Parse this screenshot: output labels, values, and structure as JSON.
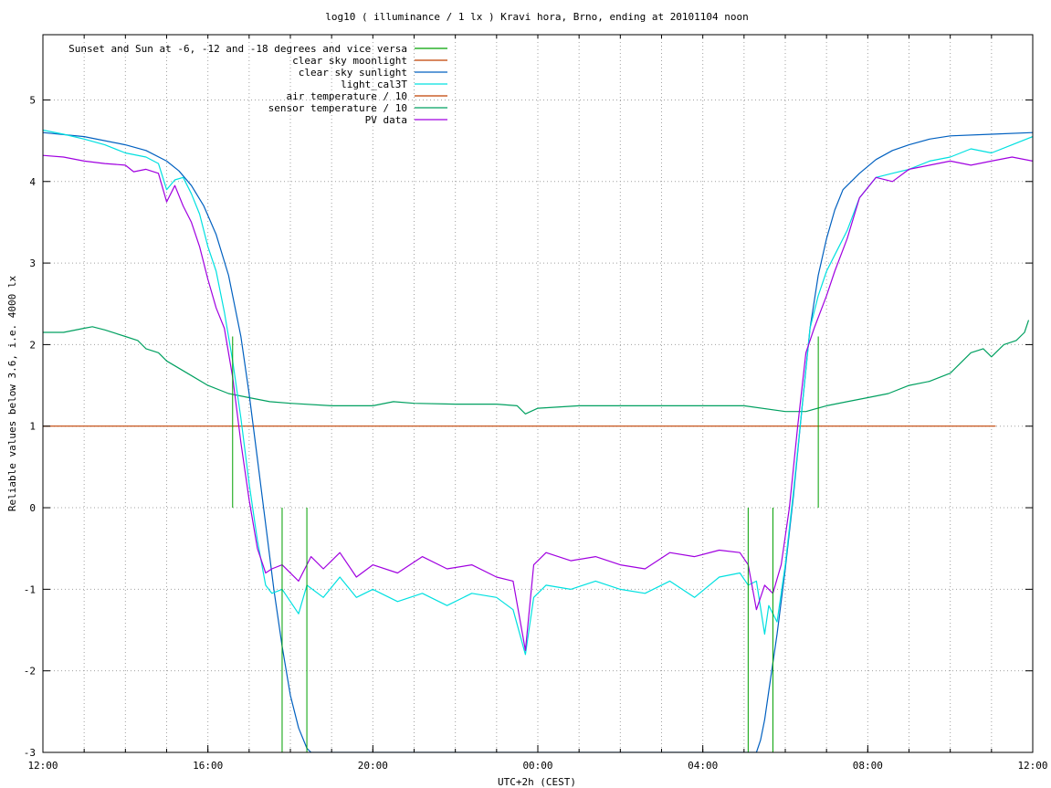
{
  "chart_data": {
    "type": "line",
    "title": "log10 ( illuminance / 1 lx ) Kravi hora, Brno, ending at 20101104 noon",
    "xlabel": "UTC+2h (CEST)",
    "ylabel": "Reliable values below 3.6, i.e. 4000 lx",
    "xlim_hours": [
      0,
      24
    ],
    "ylim": [
      -3,
      5.8
    ],
    "x_ticks": [
      {
        "h": 0,
        "label": "12:00"
      },
      {
        "h": 4,
        "label": "16:00"
      },
      {
        "h": 8,
        "label": "20:00"
      },
      {
        "h": 12,
        "label": "00:00"
      },
      {
        "h": 16,
        "label": "04:00"
      },
      {
        "h": 20,
        "label": "08:00"
      },
      {
        "h": 24,
        "label": "12:00"
      }
    ],
    "minor_grid_step_hours": 1,
    "y_ticks": [
      -3,
      -2,
      -1,
      0,
      1,
      2,
      3,
      4,
      5
    ],
    "grid": true,
    "legend_position": "top-left",
    "series": [
      {
        "name": "Sunset and Sun at -6, -12 and -18 degrees and vice versa",
        "color": "#00a000",
        "kind": "impulses",
        "markers": [
          {
            "x": 4.6,
            "y": 2.1
          },
          {
            "x": 5.8,
            "y": -3
          },
          {
            "x": 6.4,
            "y": -3
          },
          {
            "x": 17.1,
            "y": -3
          },
          {
            "x": 17.7,
            "y": -3
          },
          {
            "x": 18.8,
            "y": 2.1
          }
        ]
      },
      {
        "name": "clear sky moonlight",
        "color": "#c04000",
        "x": [
          0,
          23.1
        ],
        "y": [
          1,
          1
        ]
      },
      {
        "name": "clear sky sunlight",
        "color": "#0060c0",
        "x": [
          0,
          1,
          2,
          2.5,
          3,
          3.3,
          3.6,
          3.9,
          4.2,
          4.5,
          4.8,
          5.0,
          5.2,
          5.4,
          5.6,
          5.8,
          6.0,
          6.2,
          6.4,
          6.5,
          6.6,
          6.7,
          6.8,
          17.2,
          17.3,
          17.4,
          17.5,
          17.6,
          17.8,
          18.0,
          18.2,
          18.4,
          18.6,
          18.8,
          19.0,
          19.2,
          19.4,
          19.8,
          20.2,
          20.6,
          21.0,
          21.5,
          22,
          23,
          24
        ],
        "y": [
          4.6,
          4.55,
          4.45,
          4.38,
          4.25,
          4.13,
          3.95,
          3.7,
          3.35,
          2.85,
          2.1,
          1.4,
          0.6,
          -0.2,
          -1.0,
          -1.7,
          -2.3,
          -2.7,
          -2.95,
          -3.0,
          -3.0,
          -3.0,
          -3.0,
          -3.0,
          -3.0,
          -2.85,
          -2.6,
          -2.25,
          -1.55,
          -0.75,
          0.15,
          1.2,
          2.2,
          2.85,
          3.3,
          3.65,
          3.9,
          4.1,
          4.27,
          4.38,
          4.45,
          4.52,
          4.56,
          4.58,
          4.6
        ]
      },
      {
        "name": "light_cal3T",
        "color": "#00e0e0",
        "x": [
          0,
          0.5,
          1,
          1.5,
          2,
          2.5,
          2.8,
          3.0,
          3.2,
          3.4,
          3.6,
          3.8,
          4.0,
          4.2,
          4.4,
          4.6,
          4.8,
          5.0,
          5.2,
          5.4,
          5.55,
          5.8,
          6.2,
          6.4,
          6.8,
          7.2,
          7.6,
          8.0,
          8.6,
          9.2,
          9.8,
          10.4,
          11.0,
          11.4,
          11.7,
          11.9,
          12.2,
          12.8,
          13.4,
          14.0,
          14.6,
          15.2,
          15.8,
          16.4,
          16.9,
          17.1,
          17.3,
          17.5,
          17.6,
          17.8,
          18.0,
          18.2,
          18.4,
          18.6,
          18.8,
          19.0,
          19.2,
          19.5,
          19.8,
          20.2,
          20.6,
          21.0,
          21.5,
          22,
          22.5,
          23,
          23.5,
          24
        ],
        "y": [
          4.63,
          4.58,
          4.52,
          4.45,
          4.35,
          4.3,
          4.22,
          3.9,
          4.02,
          4.05,
          3.85,
          3.6,
          3.2,
          2.9,
          2.4,
          1.8,
          1.1,
          0.3,
          -0.4,
          -0.95,
          -1.05,
          -1.0,
          -1.3,
          -0.95,
          -1.1,
          -0.85,
          -1.1,
          -1.0,
          -1.15,
          -1.05,
          -1.2,
          -1.05,
          -1.1,
          -1.25,
          -1.8,
          -1.1,
          -0.95,
          -1.0,
          -0.9,
          -1.0,
          -1.05,
          -0.9,
          -1.1,
          -0.85,
          -0.8,
          -0.95,
          -0.9,
          -1.55,
          -1.2,
          -1.4,
          -0.7,
          0.2,
          1.2,
          2.2,
          2.6,
          2.9,
          3.1,
          3.4,
          3.8,
          4.05,
          4.1,
          4.15,
          4.25,
          4.3,
          4.4,
          4.35,
          4.45,
          4.55
        ]
      },
      {
        "name": "air temperature / 10",
        "color": "#c04000",
        "x": [],
        "y": []
      },
      {
        "name": "sensor temperature / 10",
        "color": "#00a060",
        "x": [
          0,
          0.5,
          1,
          1.2,
          1.5,
          2,
          2.3,
          2.5,
          2.8,
          3.0,
          3.5,
          4.0,
          4.5,
          5.0,
          5.5,
          6.0,
          7.0,
          8.0,
          8.5,
          9.0,
          10.0,
          11.0,
          11.5,
          11.7,
          12.0,
          13.0,
          14.0,
          15.0,
          16.0,
          17.0,
          18.0,
          18.5,
          19.0,
          19.5,
          20.0,
          20.5,
          21.0,
          21.5,
          22.0,
          22.5,
          22.8,
          23.0,
          23.3,
          23.6,
          23.8,
          23.9
        ],
        "y": [
          2.15,
          2.15,
          2.2,
          2.22,
          2.18,
          2.1,
          2.05,
          1.95,
          1.9,
          1.8,
          1.65,
          1.5,
          1.4,
          1.35,
          1.3,
          1.28,
          1.25,
          1.25,
          1.3,
          1.28,
          1.27,
          1.27,
          1.25,
          1.15,
          1.22,
          1.25,
          1.25,
          1.25,
          1.25,
          1.25,
          1.18,
          1.18,
          1.25,
          1.3,
          1.35,
          1.4,
          1.5,
          1.55,
          1.65,
          1.9,
          1.95,
          1.85,
          2.0,
          2.05,
          2.15,
          2.3
        ]
      },
      {
        "name": "PV data",
        "color": "#a000e0",
        "x": [
          0,
          0.5,
          1,
          1.5,
          2,
          2.2,
          2.5,
          2.8,
          3.0,
          3.2,
          3.4,
          3.6,
          3.8,
          4.0,
          4.2,
          4.4,
          4.6,
          4.8,
          5.0,
          5.2,
          5.4,
          5.55,
          5.8,
          6.2,
          6.5,
          6.8,
          7.2,
          7.6,
          8.0,
          8.6,
          9.2,
          9.8,
          10.4,
          11.0,
          11.4,
          11.7,
          11.9,
          12.2,
          12.8,
          13.4,
          14.0,
          14.6,
          15.2,
          15.8,
          16.4,
          16.9,
          17.1,
          17.3,
          17.5,
          17.7,
          17.9,
          18.1,
          18.3,
          18.5,
          18.7,
          19.0,
          19.2,
          19.5,
          19.8,
          20.2,
          20.6,
          21.0,
          21.5,
          22,
          22.5,
          23,
          23.5,
          24
        ],
        "y": [
          4.32,
          4.3,
          4.25,
          4.22,
          4.2,
          4.12,
          4.15,
          4.1,
          3.75,
          3.95,
          3.7,
          3.5,
          3.2,
          2.8,
          2.45,
          2.2,
          1.6,
          0.8,
          0.1,
          -0.5,
          -0.8,
          -0.75,
          -0.7,
          -0.9,
          -0.6,
          -0.75,
          -0.55,
          -0.85,
          -0.7,
          -0.8,
          -0.6,
          -0.75,
          -0.7,
          -0.85,
          -0.9,
          -1.75,
          -0.7,
          -0.55,
          -0.65,
          -0.6,
          -0.7,
          -0.75,
          -0.55,
          -0.6,
          -0.52,
          -0.55,
          -0.7,
          -1.25,
          -0.95,
          -1.05,
          -0.7,
          0.0,
          1.0,
          1.9,
          2.2,
          2.6,
          2.9,
          3.3,
          3.8,
          4.05,
          4.0,
          4.15,
          4.2,
          4.25,
          4.2,
          4.25,
          4.3,
          4.25
        ]
      }
    ]
  }
}
